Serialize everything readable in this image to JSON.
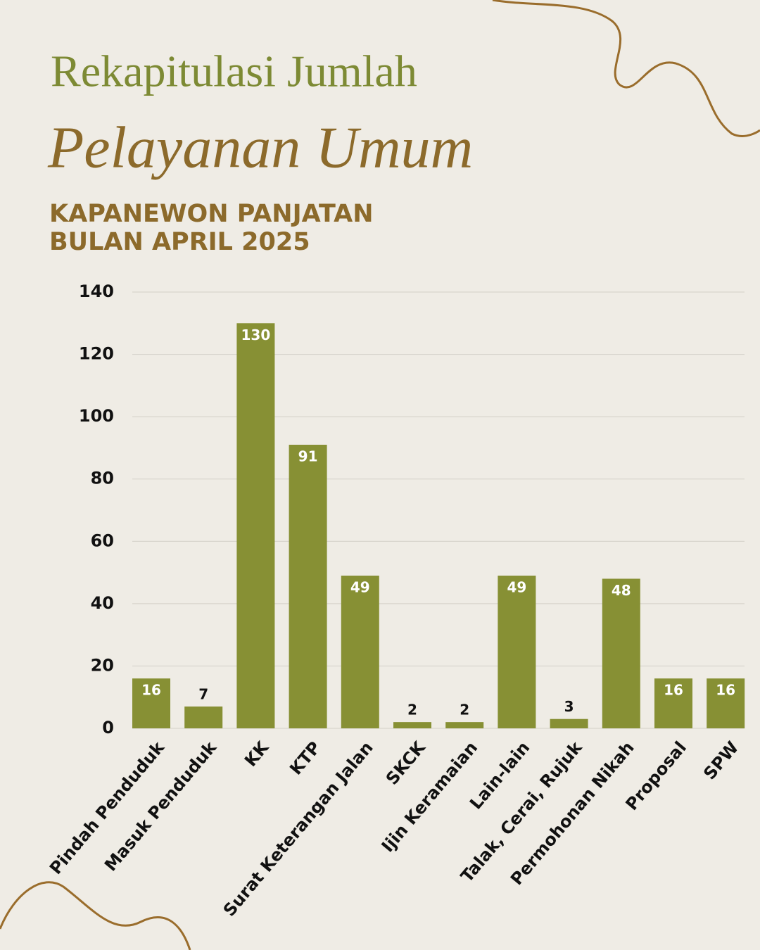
{
  "chart_data": {
    "type": "bar",
    "title": [
      "Rekapitulasi Jumlah",
      "Pelayanan Umum"
    ],
    "subtitle": [
      "KAPANEWON PANJATAN",
      "BULAN APRIL 2025"
    ],
    "categories": [
      "Pindah Penduduk",
      "Masuk Penduduk",
      "KK",
      "KTP",
      "Surat Keterangan Jalan",
      "SKCK",
      "Ijin Keramaian",
      "Lain-lain",
      "Talak, Cerai, Rujuk",
      "Permohonan Nikah",
      "Proposal",
      "SPW"
    ],
    "values": [
      16,
      7,
      130,
      91,
      49,
      2,
      2,
      49,
      3,
      48,
      16,
      16
    ],
    "color": "#879034",
    "ylim": [
      0,
      140
    ],
    "yticks": [
      0,
      20,
      40,
      60,
      80,
      100,
      120,
      140
    ],
    "grid": true
  }
}
